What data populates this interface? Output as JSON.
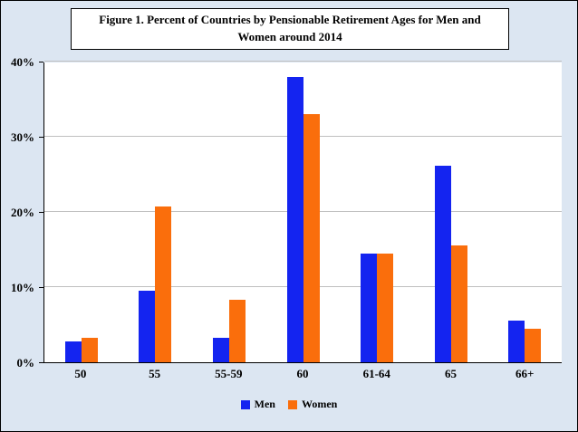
{
  "chart": {
    "title_line1": "Figure 1. Percent of Countries by Pensionable Retirement Ages for Men and",
    "title_line2": "Women around 2014"
  },
  "chart_data": {
    "type": "bar",
    "title": "Figure 1. Percent of Countries by Pensionable Retirement Ages for Men and Women around 2014",
    "categories": [
      "50",
      "55",
      "55-59",
      "60",
      "61-64",
      "65",
      "66+"
    ],
    "series": [
      {
        "name": "Men",
        "color": "#1424F0",
        "values": [
          2.8,
          9.5,
          3.3,
          38.0,
          14.5,
          26.2,
          5.5
        ]
      },
      {
        "name": "Women",
        "color": "#FA6E0C",
        "values": [
          3.3,
          20.7,
          8.3,
          33.0,
          14.5,
          15.6,
          4.5
        ]
      }
    ],
    "xlabel": "",
    "ylabel": "",
    "ylim": [
      0,
      40
    ],
    "ytick_interval": 10,
    "ytick_labels": [
      "0%",
      "10%",
      "20%",
      "30%",
      "40%"
    ],
    "grid": true,
    "legend_position": "bottom"
  },
  "colors": {
    "background": "#DCE6F2",
    "plot_background": "#FFFFFF",
    "gridline": "#BFBFBF",
    "border": "#000000",
    "men": "#1424F0",
    "women": "#FA6E0C"
  }
}
